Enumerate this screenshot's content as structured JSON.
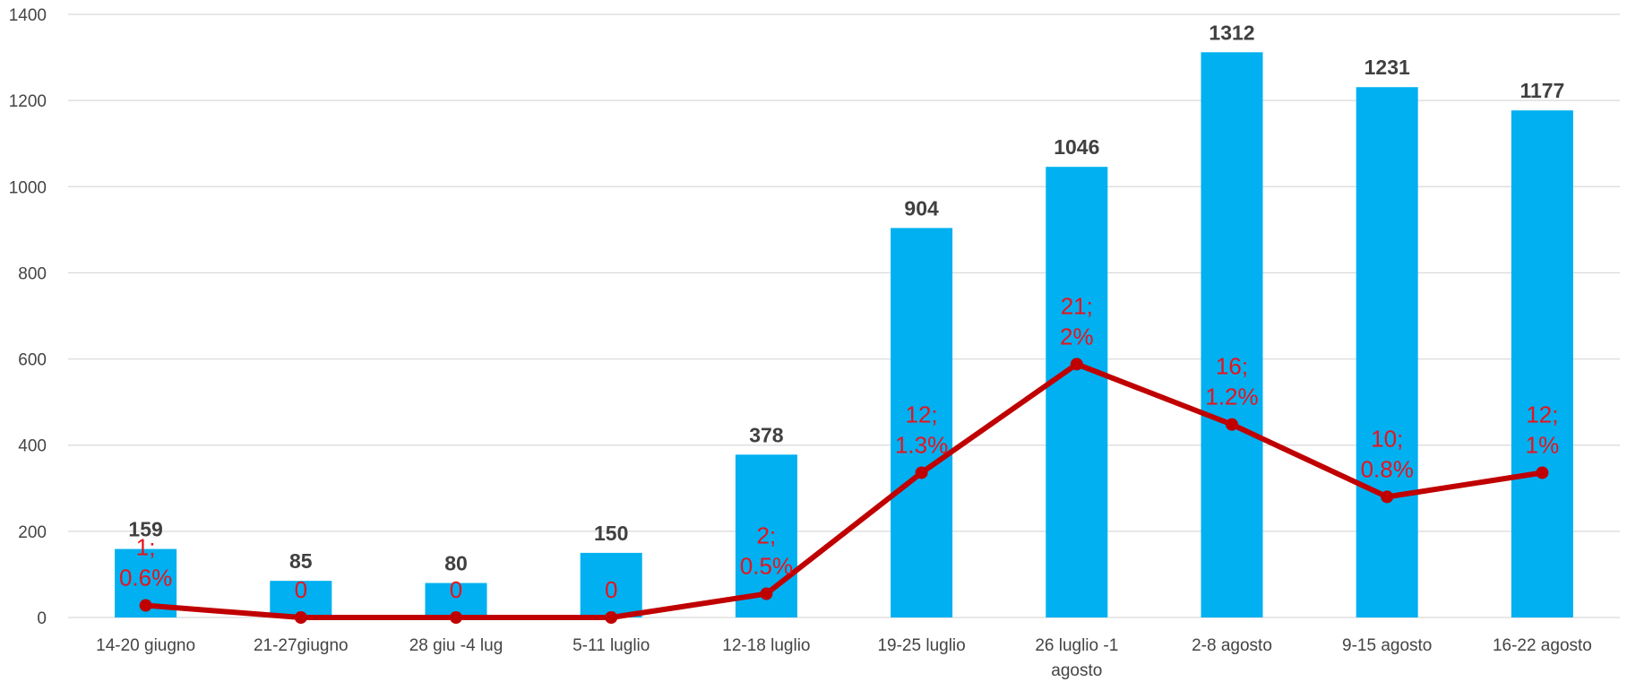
{
  "chart_data": {
    "type": "bar",
    "categories": [
      [
        "14-20 giugno"
      ],
      [
        "21-27giugno"
      ],
      [
        "28 giu -4 lug"
      ],
      [
        "5-11 luglio"
      ],
      [
        "12-18 luglio"
      ],
      [
        "19-25 luglio"
      ],
      [
        "26 luglio -1",
        "agosto"
      ],
      [
        "2-8 agosto"
      ],
      [
        "9-15 agosto"
      ],
      [
        "16-22 agosto"
      ]
    ],
    "ylim": [
      0,
      1400
    ],
    "yticks": [
      0,
      200,
      400,
      600,
      800,
      1000,
      1200,
      1400
    ],
    "grid": true,
    "series": [
      {
        "type": "bar",
        "color": "#00b0f0",
        "values": [
          159,
          85,
          80,
          150,
          378,
          904,
          1046,
          1312,
          1231,
          1177
        ],
        "labels": [
          "159",
          "85",
          "80",
          "150",
          "378",
          "904",
          "1046",
          "1312",
          "1231",
          "1177"
        ]
      },
      {
        "type": "line",
        "color": "#c00000",
        "label_color": "#e8131b",
        "values": [
          28,
          0,
          0,
          0,
          55,
          336,
          588,
          448,
          280,
          336
        ],
        "labels": [
          [
            "1;",
            "0.6%"
          ],
          [
            "0"
          ],
          [
            "0"
          ],
          [
            "0"
          ],
          [
            "2;",
            "0.5%"
          ],
          [
            "12;",
            "1.3%"
          ],
          [
            "21;",
            "2%"
          ],
          [
            "16;",
            "1.2%"
          ],
          [
            "10;",
            "0.8%"
          ],
          [
            "12;",
            "1%"
          ]
        ]
      }
    ]
  }
}
